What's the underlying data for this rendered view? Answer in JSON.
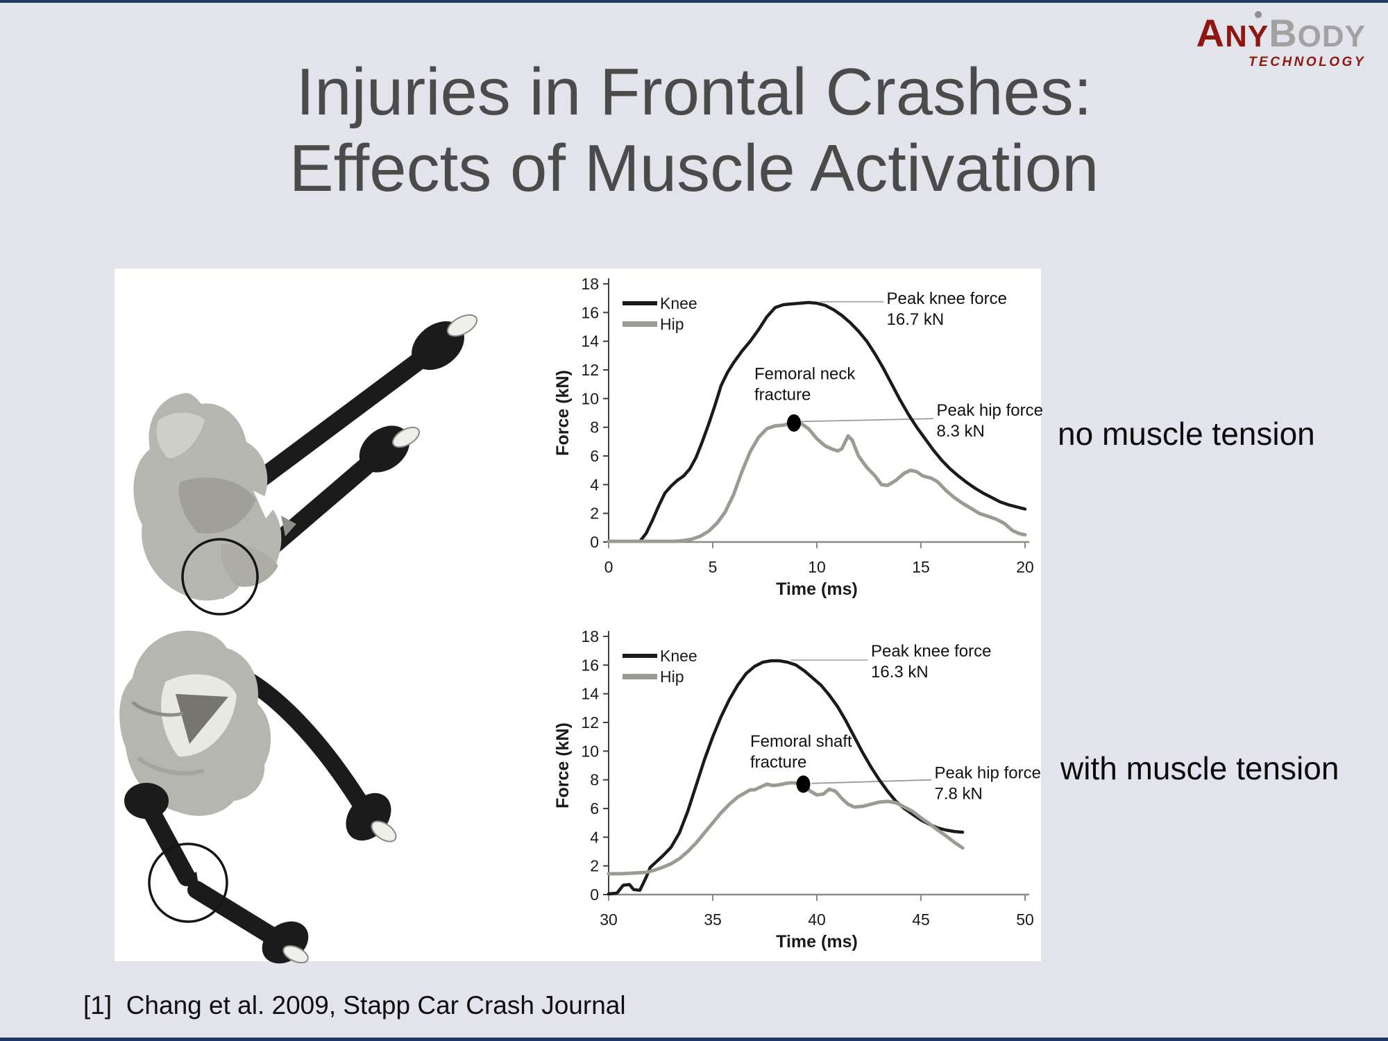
{
  "slide": {
    "background_color": "#E3E3EC",
    "edge_bar_color": "#1F3864",
    "title_line1": "Injuries in Frontal Crashes:",
    "title_line2": "Effects of Muscle Activation",
    "title_color": "#4B4B4B",
    "right_labels": {
      "top": "no muscle tension",
      "bottom": "with muscle tension"
    },
    "citation": "[1]  Chang et al. 2009, Stapp Car Crash Journal"
  },
  "logo": {
    "word1_initial": "A",
    "word1_rest": "NY",
    "word2_initial": "B",
    "word2_rest": "ODY",
    "subtitle": "TECHNOLOGY",
    "red": "#8E1712",
    "gray": "#A2A2A2",
    "person_icon": "figure-dot"
  },
  "chart_data": [
    {
      "type": "line",
      "position": "top",
      "xlabel": "Time (ms)",
      "ylabel": "Force (kN)",
      "xlim": [
        0,
        20
      ],
      "ylim": [
        0,
        18
      ],
      "xticks": [
        0,
        5,
        10,
        15,
        20
      ],
      "yticks": [
        0,
        2,
        4,
        6,
        8,
        10,
        12,
        14,
        16,
        18
      ],
      "grid": false,
      "legend": {
        "position": "top-left",
        "entries": [
          "Knee",
          "Hip"
        ]
      },
      "series": [
        {
          "name": "Knee",
          "color": "#1A1A1A",
          "width": 4.5,
          "points": [
            [
              0,
              0.05
            ],
            [
              1.5,
              0.05
            ],
            [
              1.8,
              0.6
            ],
            [
              2.1,
              1.5
            ],
            [
              2.4,
              2.5
            ],
            [
              2.7,
              3.4
            ],
            [
              3.0,
              3.9
            ],
            [
              3.3,
              4.3
            ],
            [
              3.6,
              4.6
            ],
            [
              3.9,
              5.1
            ],
            [
              4.2,
              5.9
            ],
            [
              4.5,
              7.0
            ],
            [
              4.8,
              8.2
            ],
            [
              5.1,
              9.5
            ],
            [
              5.4,
              10.9
            ],
            [
              5.7,
              11.8
            ],
            [
              6.0,
              12.5
            ],
            [
              6.4,
              13.3
            ],
            [
              6.8,
              14.0
            ],
            [
              7.2,
              14.8
            ],
            [
              7.6,
              15.7
            ],
            [
              8.0,
              16.35
            ],
            [
              8.4,
              16.55
            ],
            [
              8.8,
              16.6
            ],
            [
              9.2,
              16.65
            ],
            [
              9.6,
              16.7
            ],
            [
              10.0,
              16.65
            ],
            [
              10.4,
              16.5
            ],
            [
              10.8,
              16.2
            ],
            [
              11.2,
              15.8
            ],
            [
              11.6,
              15.3
            ],
            [
              12.0,
              14.7
            ],
            [
              12.4,
              14.0
            ],
            [
              12.8,
              13.1
            ],
            [
              13.2,
              12.1
            ],
            [
              13.6,
              11.0
            ],
            [
              14.0,
              9.9
            ],
            [
              14.4,
              8.9
            ],
            [
              14.8,
              8.0
            ],
            [
              15.2,
              7.2
            ],
            [
              15.6,
              6.4
            ],
            [
              16.0,
              5.7
            ],
            [
              16.4,
              5.1
            ],
            [
              16.8,
              4.6
            ],
            [
              17.2,
              4.15
            ],
            [
              17.6,
              3.75
            ],
            [
              18.0,
              3.4
            ],
            [
              18.4,
              3.1
            ],
            [
              18.8,
              2.8
            ],
            [
              19.2,
              2.6
            ],
            [
              19.6,
              2.45
            ],
            [
              20,
              2.3
            ]
          ]
        },
        {
          "name": "Hip",
          "color": "#9B9B94",
          "width": 5,
          "points": [
            [
              0,
              0.05
            ],
            [
              3.2,
              0.05
            ],
            [
              3.6,
              0.1
            ],
            [
              4.0,
              0.2
            ],
            [
              4.4,
              0.4
            ],
            [
              4.8,
              0.75
            ],
            [
              5.2,
              1.3
            ],
            [
              5.6,
              2.1
            ],
            [
              6.0,
              3.3
            ],
            [
              6.4,
              4.9
            ],
            [
              6.8,
              6.3
            ],
            [
              7.2,
              7.3
            ],
            [
              7.6,
              7.9
            ],
            [
              8.0,
              8.1
            ],
            [
              8.4,
              8.15
            ],
            [
              8.8,
              8.3
            ],
            [
              9.2,
              8.3
            ],
            [
              9.6,
              7.9
            ],
            [
              10.0,
              7.2
            ],
            [
              10.4,
              6.7
            ],
            [
              10.7,
              6.5
            ],
            [
              11.0,
              6.35
            ],
            [
              11.2,
              6.5
            ],
            [
              11.5,
              7.4
            ],
            [
              11.7,
              7.1
            ],
            [
              12.0,
              6.0
            ],
            [
              12.4,
              5.2
            ],
            [
              12.8,
              4.6
            ],
            [
              13.1,
              4.0
            ],
            [
              13.4,
              3.95
            ],
            [
              13.8,
              4.3
            ],
            [
              14.2,
              4.8
            ],
            [
              14.5,
              5.0
            ],
            [
              14.8,
              4.9
            ],
            [
              15.1,
              4.6
            ],
            [
              15.5,
              4.45
            ],
            [
              15.8,
              4.2
            ],
            [
              16.2,
              3.6
            ],
            [
              16.6,
              3.1
            ],
            [
              17.0,
              2.7
            ],
            [
              17.4,
              2.35
            ],
            [
              17.8,
              2.0
            ],
            [
              18.2,
              1.8
            ],
            [
              18.6,
              1.6
            ],
            [
              19.0,
              1.3
            ],
            [
              19.4,
              0.8
            ],
            [
              19.7,
              0.6
            ],
            [
              20,
              0.5
            ]
          ]
        }
      ],
      "marker": {
        "x": 8.9,
        "y": 8.3,
        "color": "#000000",
        "meaning": "femoral neck fracture point"
      },
      "annotations": [
        {
          "id": "peak-knee",
          "lines": [
            "Peak knee force",
            "16.7 kN"
          ],
          "x": 13.35,
          "y": 16.6,
          "leader": [
            10.15,
            16.75,
            13.2,
            16.75
          ],
          "leader_color": "#ABABAB"
        },
        {
          "id": "fracture",
          "lines": [
            "Femoral neck",
            "fracture"
          ],
          "x": 7.0,
          "y": 11.35
        },
        {
          "id": "peak-hip",
          "lines": [
            "Peak hip force",
            "8.3 kN"
          ],
          "x": 15.75,
          "y": 8.8,
          "leader": [
            9.2,
            8.4,
            15.6,
            8.6
          ],
          "leader_color": "#9B9B94"
        }
      ]
    },
    {
      "type": "line",
      "position": "bottom",
      "xlabel": "Time (ms)",
      "ylabel": "Force (kN)",
      "xlim": [
        30,
        50
      ],
      "ylim": [
        0,
        18
      ],
      "xticks": [
        30,
        35,
        40,
        45,
        50
      ],
      "yticks": [
        0,
        2,
        4,
        6,
        8,
        10,
        12,
        14,
        16,
        18
      ],
      "grid": false,
      "legend": {
        "position": "top-left",
        "entries": [
          "Knee",
          "Hip"
        ]
      },
      "series": [
        {
          "name": "Knee",
          "color": "#1A1A1A",
          "width": 4.5,
          "points": [
            [
              30,
              0.05
            ],
            [
              30.4,
              0.1
            ],
            [
              30.7,
              0.65
            ],
            [
              31.0,
              0.7
            ],
            [
              31.2,
              0.35
            ],
            [
              31.5,
              0.3
            ],
            [
              31.8,
              1.2
            ],
            [
              32.0,
              1.9
            ],
            [
              32.3,
              2.3
            ],
            [
              32.6,
              2.7
            ],
            [
              33.0,
              3.3
            ],
            [
              33.4,
              4.3
            ],
            [
              33.8,
              5.8
            ],
            [
              34.2,
              7.6
            ],
            [
              34.6,
              9.4
            ],
            [
              35.0,
              11.0
            ],
            [
              35.4,
              12.4
            ],
            [
              35.8,
              13.6
            ],
            [
              36.2,
              14.6
            ],
            [
              36.6,
              15.4
            ],
            [
              37.0,
              15.9
            ],
            [
              37.4,
              16.2
            ],
            [
              37.8,
              16.3
            ],
            [
              38.2,
              16.3
            ],
            [
              38.6,
              16.2
            ],
            [
              39.0,
              16.0
            ],
            [
              39.4,
              15.6
            ],
            [
              39.8,
              15.1
            ],
            [
              40.2,
              14.6
            ],
            [
              40.6,
              13.9
            ],
            [
              41.0,
              13.1
            ],
            [
              41.4,
              12.1
            ],
            [
              41.8,
              11.0
            ],
            [
              42.2,
              9.9
            ],
            [
              42.6,
              8.9
            ],
            [
              43.0,
              8.0
            ],
            [
              43.4,
              7.2
            ],
            [
              43.8,
              6.5
            ],
            [
              44.2,
              6.0
            ],
            [
              44.6,
              5.6
            ],
            [
              45.0,
              5.2
            ],
            [
              45.4,
              4.9
            ],
            [
              45.8,
              4.65
            ],
            [
              46.2,
              4.5
            ],
            [
              46.6,
              4.4
            ],
            [
              47.0,
              4.35
            ]
          ]
        },
        {
          "name": "Hip",
          "color": "#9B9B94",
          "width": 5,
          "points": [
            [
              30,
              1.45
            ],
            [
              30.6,
              1.45
            ],
            [
              31.2,
              1.5
            ],
            [
              31.8,
              1.55
            ],
            [
              32.2,
              1.7
            ],
            [
              32.6,
              1.9
            ],
            [
              33.0,
              2.15
            ],
            [
              33.4,
              2.5
            ],
            [
              33.8,
              3.0
            ],
            [
              34.2,
              3.6
            ],
            [
              34.6,
              4.3
            ],
            [
              35.0,
              5.0
            ],
            [
              35.4,
              5.7
            ],
            [
              35.8,
              6.3
            ],
            [
              36.2,
              6.8
            ],
            [
              36.5,
              7.05
            ],
            [
              36.8,
              7.3
            ],
            [
              37.0,
              7.3
            ],
            [
              37.3,
              7.5
            ],
            [
              37.6,
              7.7
            ],
            [
              37.9,
              7.6
            ],
            [
              38.2,
              7.65
            ],
            [
              38.5,
              7.75
            ],
            [
              38.8,
              7.8
            ],
            [
              39.1,
              7.75
            ],
            [
              39.4,
              7.6
            ],
            [
              39.7,
              7.2
            ],
            [
              40.0,
              6.95
            ],
            [
              40.3,
              7.0
            ],
            [
              40.6,
              7.35
            ],
            [
              40.9,
              7.2
            ],
            [
              41.2,
              6.7
            ],
            [
              41.5,
              6.3
            ],
            [
              41.8,
              6.1
            ],
            [
              42.2,
              6.15
            ],
            [
              42.6,
              6.3
            ],
            [
              43.0,
              6.45
            ],
            [
              43.4,
              6.5
            ],
            [
              43.8,
              6.4
            ],
            [
              44.2,
              6.1
            ],
            [
              44.6,
              5.8
            ],
            [
              45.0,
              5.35
            ],
            [
              45.4,
              4.95
            ],
            [
              45.8,
              4.5
            ],
            [
              46.2,
              4.1
            ],
            [
              46.6,
              3.65
            ],
            [
              47.0,
              3.25
            ]
          ]
        }
      ],
      "marker": {
        "x": 39.35,
        "y": 7.7,
        "color": "#000000",
        "meaning": "femoral shaft fracture point"
      },
      "annotations": [
        {
          "id": "peak-knee",
          "lines": [
            "Peak knee force",
            "16.3 kN"
          ],
          "x": 42.6,
          "y": 16.6,
          "leader": [
            38.75,
            16.35,
            42.45,
            16.35
          ],
          "leader_color": "#ABABAB"
        },
        {
          "id": "fracture",
          "lines": [
            "Femoral shaft",
            "fracture"
          ],
          "x": 36.8,
          "y": 10.3
        },
        {
          "id": "peak-hip",
          "lines": [
            "Peak hip force",
            "7.8 kN"
          ],
          "x": 45.65,
          "y": 8.1,
          "leader": [
            39.75,
            7.75,
            45.5,
            8.0
          ],
          "leader_color": "#9B9B94"
        }
      ]
    }
  ]
}
